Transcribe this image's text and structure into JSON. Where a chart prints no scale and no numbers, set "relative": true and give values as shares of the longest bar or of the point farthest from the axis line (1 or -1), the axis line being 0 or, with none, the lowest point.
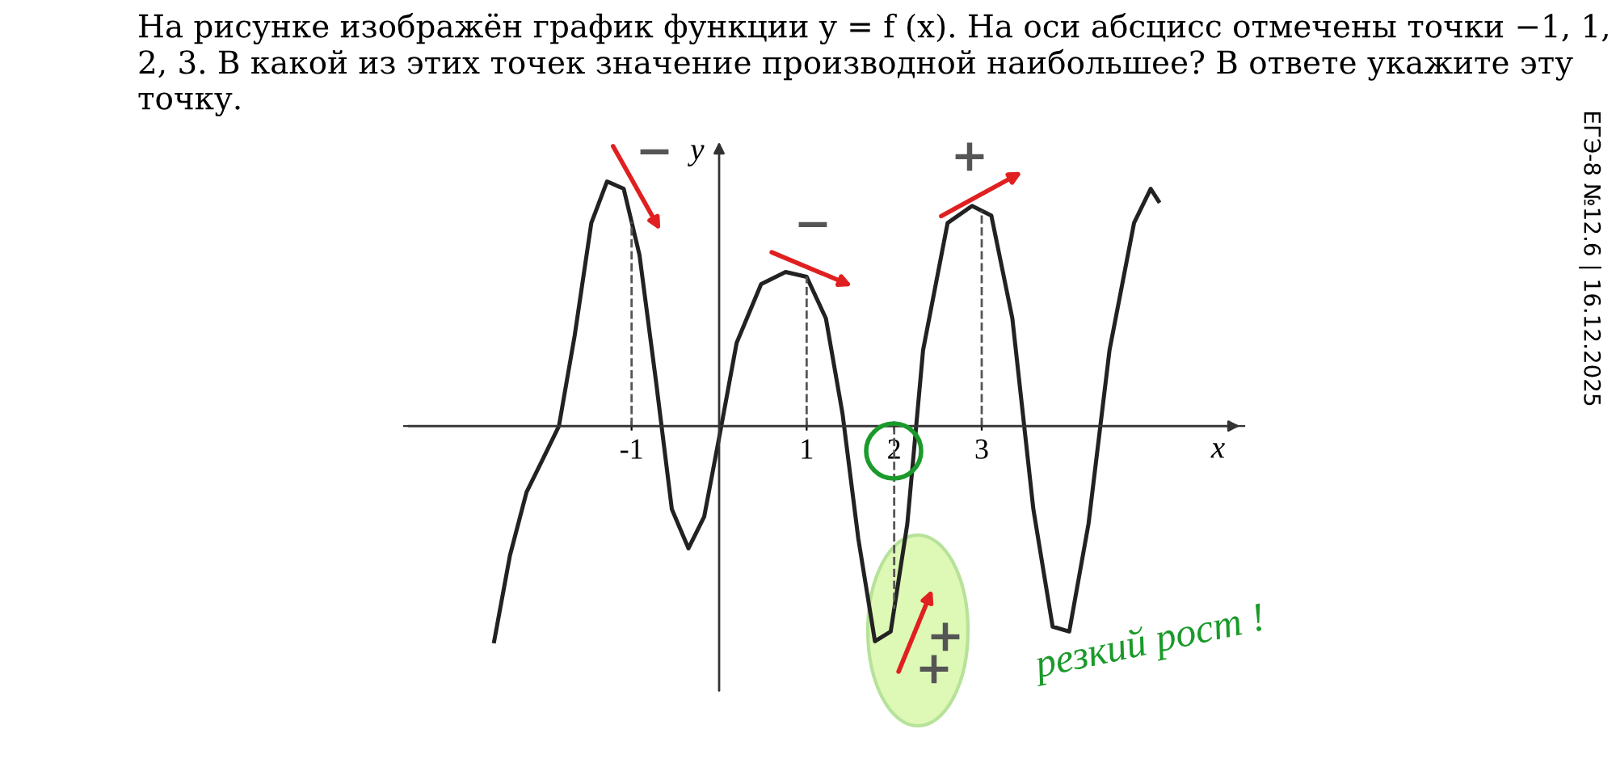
{
  "chart_data": {
    "type": "line",
    "title": "На рисунке изображён график функции y = f (x). На оси абсцисс отмечены точки −1, 1, 2, 3. В какой из этих точек значение производной наибольшее? В ответе укажите эту точку.",
    "xlabel": "x",
    "ylabel": "y",
    "relative": true,
    "x": [
      -2.57,
      -2.39,
      -2.2,
      -2.02,
      -1.83,
      -1.65,
      -1.46,
      -1.28,
      -1.09,
      -0.91,
      -0.72,
      -0.54,
      -0.35,
      -0.17,
      0.02,
      0.2,
      0.48,
      0.76,
      1.0,
      1.22,
      1.41,
      1.59,
      1.78,
      1.96,
      2.15,
      2.33,
      2.61,
      2.89,
      3.11,
      3.35,
      3.59,
      3.81,
      4.0,
      4.22,
      4.46,
      4.74,
      4.93,
      5.02
    ],
    "series": [
      {
        "color": "#222222",
        "values": [
          -0.88,
          -0.53,
          -0.27,
          -0.14,
          0,
          0.37,
          0.83,
          1.0,
          0.97,
          0.7,
          0.18,
          -0.34,
          -0.5,
          -0.37,
          -0.01,
          0.34,
          0.58,
          0.63,
          0.61,
          0.44,
          0.05,
          -0.46,
          -0.88,
          -0.84,
          -0.4,
          0.31,
          0.83,
          0.9,
          0.86,
          0.44,
          -0.34,
          -0.82,
          -0.84,
          -0.4,
          0.31,
          0.83,
          0.97,
          0.92
        ]
      }
    ],
    "xlim": [
      -3.6,
      6.0
    ],
    "xticks": [
      -1,
      1,
      2,
      3
    ],
    "ref_lines": [
      {
        "axis": "x",
        "value": -1,
        "color": "#555555",
        "line_style": "dashed"
      },
      {
        "axis": "x",
        "value": 1,
        "color": "#555555",
        "line_style": "dashed"
      },
      {
        "axis": "x",
        "value": 2,
        "color": "#555555",
        "line_style": "dashed"
      },
      {
        "axis": "x",
        "value": 3,
        "color": "#555555",
        "line_style": "dashed"
      }
    ],
    "grid": false,
    "legend": false,
    "marker": "none",
    "line_style": "solid",
    "annotations": [
      "−",
      "−",
      "+",
      "+",
      "+",
      "резкий рост !",
      "ЕГЭ-8 №12.6 | 16.12.2025"
    ]
  }
}
